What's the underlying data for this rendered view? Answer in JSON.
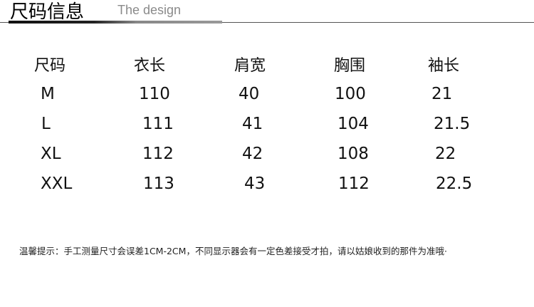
{
  "header": {
    "title": "尺码信息",
    "subtitle": "The design"
  },
  "table": {
    "columns": [
      "尺码",
      "衣长",
      "肩宽",
      "胸围",
      "袖长"
    ],
    "rows": [
      [
        "M",
        "110",
        "40",
        "100",
        "21"
      ],
      [
        "L",
        "111",
        "41",
        "104",
        "21.5"
      ],
      [
        "XL",
        "112",
        "42",
        "108",
        "22"
      ],
      [
        "XXL",
        "113",
        "43",
        "112",
        "22.5"
      ]
    ]
  },
  "note": "温馨提示：手工测量尺寸会误差1CM-2CM，不同显示器会有一定色差接受才拍，请以姑娘收到的那件为准哦·"
}
